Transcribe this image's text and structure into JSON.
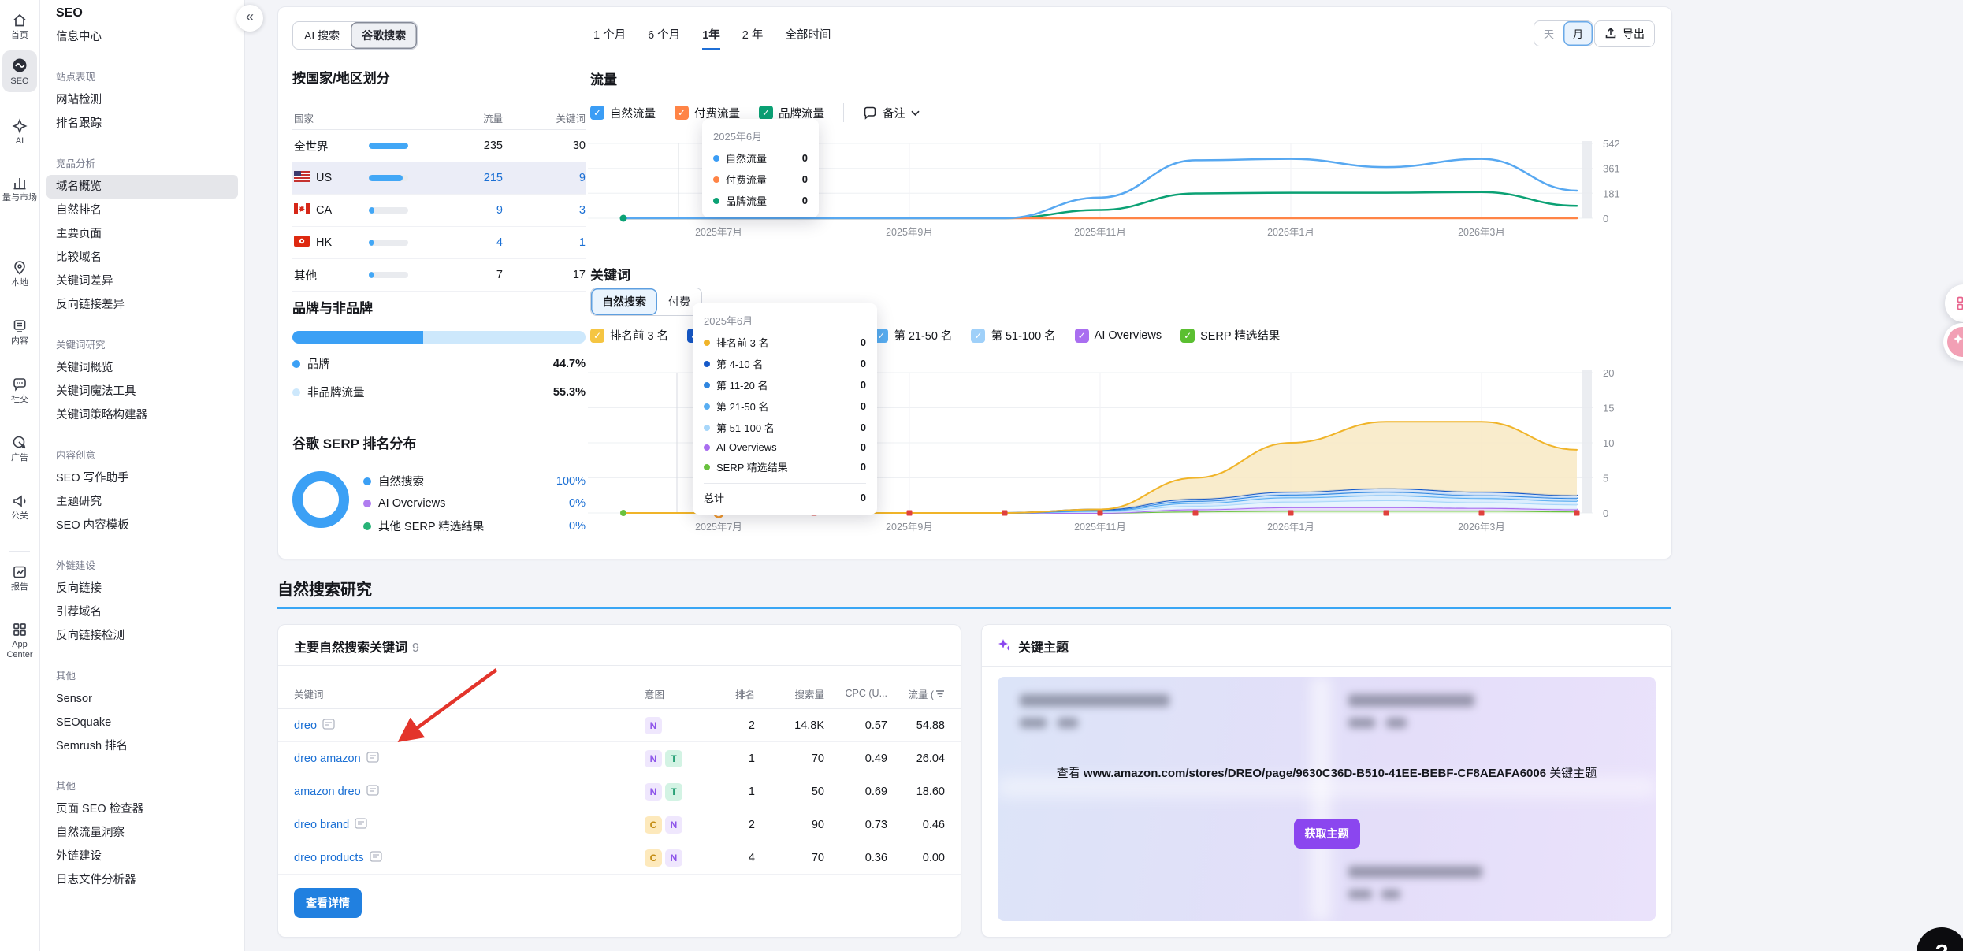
{
  "rail": {
    "items": [
      {
        "label": "首页",
        "icon": "home-icon"
      },
      {
        "label": "SEO",
        "icon": "seo-icon",
        "active": true
      },
      {
        "label": "AI",
        "icon": "ai-icon"
      },
      {
        "label": "量与市场",
        "icon": "bars-icon"
      },
      {
        "label": "本地",
        "icon": "pin-icon"
      },
      {
        "label": "内容",
        "icon": "content-icon"
      },
      {
        "label": "社交",
        "icon": "chat-icon"
      },
      {
        "label": "广告",
        "icon": "ads-icon"
      },
      {
        "label": "公关",
        "icon": "megaphone-icon"
      },
      {
        "label": "报告",
        "icon": "report-icon"
      },
      {
        "label": "App Center",
        "icon": "grid-icon"
      }
    ]
  },
  "sidebar": {
    "title": "SEO",
    "collapse_icon": "«",
    "items": [
      {
        "type": "item",
        "label": "信息中心"
      },
      {
        "type": "group",
        "label": "站点表现"
      },
      {
        "type": "item",
        "label": "网站检测"
      },
      {
        "type": "item",
        "label": "排名跟踪"
      },
      {
        "type": "group",
        "label": "竞品分析"
      },
      {
        "type": "item",
        "label": "域名概览",
        "active": true
      },
      {
        "type": "item",
        "label": "自然排名"
      },
      {
        "type": "item",
        "label": "主要页面"
      },
      {
        "type": "item",
        "label": "比较域名"
      },
      {
        "type": "item",
        "label": "关键词差异"
      },
      {
        "type": "item",
        "label": "反向链接差异"
      },
      {
        "type": "group",
        "label": "关键词研究"
      },
      {
        "type": "item",
        "label": "关键词概览"
      },
      {
        "type": "item",
        "label": "关键词魔法工具"
      },
      {
        "type": "item",
        "label": "关键词策略构建器"
      },
      {
        "type": "group",
        "label": "内容创意"
      },
      {
        "type": "item",
        "label": "SEO 写作助手"
      },
      {
        "type": "item",
        "label": "主题研究"
      },
      {
        "type": "item",
        "label": "SEO 内容模板"
      },
      {
        "type": "group",
        "label": "外链建设"
      },
      {
        "type": "item",
        "label": "反向链接"
      },
      {
        "type": "item",
        "label": "引荐域名"
      },
      {
        "type": "item",
        "label": "反向链接检测"
      },
      {
        "type": "group",
        "label": "其他"
      },
      {
        "type": "item",
        "label": "Sensor"
      },
      {
        "type": "item",
        "label": "SEOquake"
      },
      {
        "type": "item",
        "label": "Semrush 排名"
      },
      {
        "type": "group",
        "label": "其他"
      },
      {
        "type": "item",
        "label": "页面 SEO 检查器"
      },
      {
        "type": "item",
        "label": "自然流量洞察"
      },
      {
        "type": "item",
        "label": "外链建设"
      },
      {
        "type": "item",
        "label": "日志文件分析器"
      }
    ]
  },
  "toolbar": {
    "search_tabs": [
      {
        "label": "AI 搜索"
      },
      {
        "label": "谷歌搜索",
        "active": true
      }
    ],
    "time_tabs": [
      {
        "label": "1 个月"
      },
      {
        "label": "6 个月"
      },
      {
        "label": "1年",
        "active": true
      },
      {
        "label": "2 年"
      },
      {
        "label": "全部时间"
      }
    ],
    "granularity": [
      {
        "label": "天"
      },
      {
        "label": "月",
        "active": true
      }
    ],
    "export_label": "导出"
  },
  "countries": {
    "title": "按国家/地区划分",
    "headers": [
      "国家",
      "流量",
      "关键词"
    ],
    "rows": [
      {
        "name": "全世界",
        "flag": null,
        "bar_pct": 100,
        "traffic": "235",
        "keywords": "30",
        "link": false,
        "selected": false
      },
      {
        "name": "US",
        "flag": "us",
        "bar_pct": 86,
        "traffic": "215",
        "keywords": "9",
        "link": true,
        "selected": true
      },
      {
        "name": "CA",
        "flag": "ca",
        "bar_pct": 13,
        "traffic": "9",
        "keywords": "3",
        "link": true,
        "selected": false
      },
      {
        "name": "HK",
        "flag": "hk",
        "bar_pct": 11,
        "traffic": "4",
        "keywords": "1",
        "link": true,
        "selected": false
      },
      {
        "name": "其他",
        "flag": null,
        "bar_pct": 11,
        "traffic": "7",
        "keywords": "17",
        "link": false,
        "selected": false
      }
    ]
  },
  "brand_split": {
    "title": "品牌与非品牌",
    "brand_pct": 44.7,
    "rows": [
      {
        "label": "品牌",
        "value": "44.7%",
        "color": "#3BA0F5"
      },
      {
        "label": "非品牌流量",
        "value": "55.3%",
        "color": "#CDE8FC"
      }
    ]
  },
  "serp_dist": {
    "title": "谷歌 SERP 排名分布",
    "rows": [
      {
        "label": "自然搜索",
        "value": "100%",
        "color": "#3BA0F5"
      },
      {
        "label": "AI Overviews",
        "value": "0%",
        "color": "#B07DF0"
      },
      {
        "label": "其他 SERP 精选结果",
        "value": "0%",
        "color": "#27B377"
      }
    ]
  },
  "traffic": {
    "title": "流量",
    "legend": [
      {
        "label": "自然流量",
        "color": "#3B9DF5"
      },
      {
        "label": "付费流量",
        "color": "#FF8446"
      },
      {
        "label": "品牌流量",
        "color": "#0BA174"
      }
    ],
    "note_label": "备注",
    "tooltip": {
      "title": "2025年6月",
      "rows": [
        {
          "label": "自然流量",
          "value": "0",
          "color": "#3B9DF5"
        },
        {
          "label": "付费流量",
          "value": "0",
          "color": "#FF8446"
        },
        {
          "label": "品牌流量",
          "value": "0",
          "color": "#0BA174"
        }
      ]
    }
  },
  "keywords_section": {
    "title": "关键词",
    "tabs": [
      {
        "label": "自然搜索",
        "active": true
      },
      {
        "label": "付费"
      }
    ],
    "filters": [
      {
        "label": "排名前 3 名",
        "color": "#F5C542"
      },
      {
        "label": "第 4-10 名",
        "color": "#1559C9"
      },
      {
        "label": "第 11-20 名",
        "color": "#2F86E0"
      },
      {
        "label": "第 21-50 名",
        "color": "#58AEF2"
      },
      {
        "label": "第 51-100 名",
        "color": "#9FD0F9"
      },
      {
        "label": "AI Overviews",
        "color": "#A96EF0"
      },
      {
        "label": "SERP 精选结果",
        "color": "#5BBF31"
      }
    ],
    "tooltip": {
      "title": "2025年6月",
      "rows": [
        {
          "label": "排名前 3 名",
          "value": "0",
          "color": "#F0B429"
        },
        {
          "label": "第 4-10 名",
          "value": "0",
          "color": "#1559C9"
        },
        {
          "label": "第 11-20 名",
          "value": "0",
          "color": "#2F86E0"
        },
        {
          "label": "第 21-50 名",
          "value": "0",
          "color": "#58AEF2"
        },
        {
          "label": "第 51-100 名",
          "value": "0",
          "color": "#A8D7FA"
        },
        {
          "label": "AI Overviews",
          "value": "0",
          "color": "#A96EF0"
        },
        {
          "label": "SERP 精选结果",
          "value": "0",
          "color": "#69C13E"
        }
      ],
      "total_label": "总计",
      "total_value": "0"
    }
  },
  "organic_research": {
    "heading": "自然搜索研究",
    "keywords_card": {
      "title": "主要自然搜索关键词",
      "count": "9",
      "headers": [
        "关键词",
        "意图",
        "排名",
        "搜索量",
        "CPC (U...",
        "流量 ("
      ],
      "rows": [
        {
          "keyword": "dreo",
          "intents": [
            "N"
          ],
          "rank": "2",
          "volume": "14.8K",
          "cpc": "0.57",
          "traffic": "54.88"
        },
        {
          "keyword": "dreo amazon",
          "intents": [
            "N",
            "T"
          ],
          "rank": "1",
          "volume": "70",
          "cpc": "0.49",
          "traffic": "26.04"
        },
        {
          "keyword": "amazon dreo",
          "intents": [
            "N",
            "T"
          ],
          "rank": "1",
          "volume": "50",
          "cpc": "0.69",
          "traffic": "18.60"
        },
        {
          "keyword": "dreo brand",
          "intents": [
            "C",
            "N"
          ],
          "rank": "2",
          "volume": "90",
          "cpc": "0.73",
          "traffic": "0.46"
        },
        {
          "keyword": "dreo products",
          "intents": [
            "C",
            "N"
          ],
          "rank": "4",
          "volume": "70",
          "cpc": "0.36",
          "traffic": "0.00"
        }
      ],
      "cta_label": "查看详情"
    },
    "topics_card": {
      "title": "关键主题",
      "see_prefix": "查看",
      "url": "www.amazon.com/stores/DREO/page/9630C36D-B510-41EE-BEBF-CF8AEAFA6006",
      "see_suffix": "关键主题",
      "button_label": "获取主题"
    }
  },
  "floating": {
    "help_label": "?"
  },
  "chart_data": [
    {
      "type": "line",
      "title": "流量",
      "x": [
        "2025年6月",
        "2025年7月",
        "2025年8月",
        "2025年9月",
        "2025年10月",
        "2025年11月",
        "2025年12月",
        "2026年1月",
        "2026年2月",
        "2026年3月",
        "2026年4月"
      ],
      "x_axis_labels": [
        "2025年7月",
        "2025年9月",
        "2025年11月",
        "2026年1月",
        "2026年3月"
      ],
      "ylim": [
        0,
        542
      ],
      "y_ticks": [
        542,
        361,
        181,
        0
      ],
      "series": [
        {
          "name": "自然流量",
          "color": "#57A8F1",
          "values": [
            0,
            0,
            0,
            0,
            0,
            150,
            420,
            430,
            370,
            430,
            200
          ]
        },
        {
          "name": "付费流量",
          "color": "#FF8446",
          "values": [
            0,
            0,
            0,
            0,
            0,
            0,
            0,
            0,
            0,
            0,
            0
          ]
        },
        {
          "name": "品牌流量",
          "color": "#0BA174",
          "values": [
            0,
            0,
            0,
            0,
            0,
            60,
            180,
            185,
            185,
            190,
            90
          ]
        }
      ]
    },
    {
      "type": "area-stacked",
      "title": "关键词",
      "x": [
        "2025年6月",
        "2025年7月",
        "2025年8月",
        "2025年9月",
        "2025年10月",
        "2025年11月",
        "2025年12月",
        "2026年1月",
        "2026年2月",
        "2026年3月",
        "2026年4月"
      ],
      "x_axis_labels": [
        "2025年7月",
        "2025年9月",
        "2025年11月",
        "2026年1月",
        "2026年3月"
      ],
      "ylim": [
        0,
        20
      ],
      "y_ticks": [
        20,
        15,
        10,
        5,
        0
      ],
      "series": [
        {
          "name": "SERP 精选结果",
          "color": "#69C13E",
          "fill": "#DEF3D2",
          "values": [
            0,
            0,
            0,
            0,
            0,
            0,
            0.2,
            0.3,
            0.3,
            0.3,
            0.2
          ]
        },
        {
          "name": "AI Overviews",
          "color": "#A96EF0",
          "fill": "#E5D7FB",
          "values": [
            0,
            0,
            0,
            0,
            0,
            0,
            0.3,
            0.5,
            0.5,
            0.4,
            0.3
          ]
        },
        {
          "name": "第 51-100 名",
          "color": "#A8D7FA",
          "fill": "#E3F2FE",
          "values": [
            0,
            0,
            0,
            0,
            0,
            0.2,
            0.5,
            0.8,
            1,
            0.8,
            0.7
          ]
        },
        {
          "name": "第 21-50 名",
          "color": "#58AEF2",
          "fill": "#D7EBFD",
          "values": [
            0,
            0,
            0,
            0,
            0,
            0.1,
            0.4,
            0.6,
            0.7,
            0.6,
            0.5
          ]
        },
        {
          "name": "第 11-20 名",
          "color": "#2F86E0",
          "fill": "#CDE4FA",
          "values": [
            0,
            0,
            0,
            0,
            0,
            0.1,
            0.3,
            0.4,
            0.5,
            0.4,
            0.4
          ]
        },
        {
          "name": "第 4-10 名",
          "color": "#1559C9",
          "fill": "#CFE0F7",
          "values": [
            0,
            0,
            0,
            0,
            0,
            0.1,
            0.3,
            0.4,
            0.5,
            0.5,
            0.4
          ]
        },
        {
          "name": "排名前 3 名",
          "color": "#F0B429",
          "fill": "#F8E9C3",
          "values": [
            0,
            0,
            0,
            0,
            0,
            0,
            3,
            7,
            9.5,
            10,
            6.5
          ]
        }
      ]
    }
  ]
}
